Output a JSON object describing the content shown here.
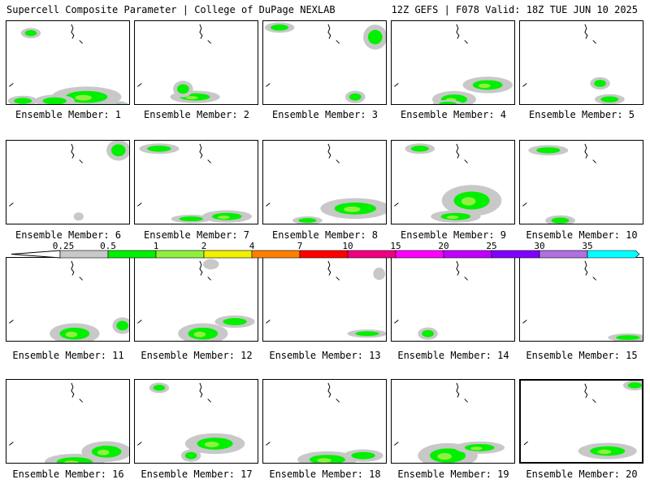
{
  "header": {
    "title": "Supercell Composite Parameter | College of DuPage NEXLAB",
    "run_info": "12Z GEFS | F078 Valid: 18Z TUE JUN 10 2025"
  },
  "member_label_prefix": "Ensemble Member: ",
  "members": [
    {
      "number": "1"
    },
    {
      "number": "2"
    },
    {
      "number": "3"
    },
    {
      "number": "4"
    },
    {
      "number": "5"
    },
    {
      "number": "6"
    },
    {
      "number": "7"
    },
    {
      "number": "8"
    },
    {
      "number": "9"
    },
    {
      "number": "10"
    },
    {
      "number": "11"
    },
    {
      "number": "12"
    },
    {
      "number": "13"
    },
    {
      "number": "14"
    },
    {
      "number": "15"
    },
    {
      "number": "16"
    },
    {
      "number": "17"
    },
    {
      "number": "18"
    },
    {
      "number": "19"
    },
    {
      "number": "20"
    }
  ],
  "selected_member": "20",
  "legend": {
    "ticks": [
      "0.25",
      "0.5",
      "1",
      "2",
      "4",
      "7",
      "10",
      "15",
      "20",
      "25",
      "30",
      "35"
    ],
    "colors": [
      "#c8c8c8",
      "#00f000",
      "#90f040",
      "#f0f000",
      "#ff8000",
      "#ff0000",
      "#f00080",
      "#ff00ff",
      "#c000ff",
      "#8000ff",
      "#b070e0",
      "#00ffff"
    ]
  }
}
